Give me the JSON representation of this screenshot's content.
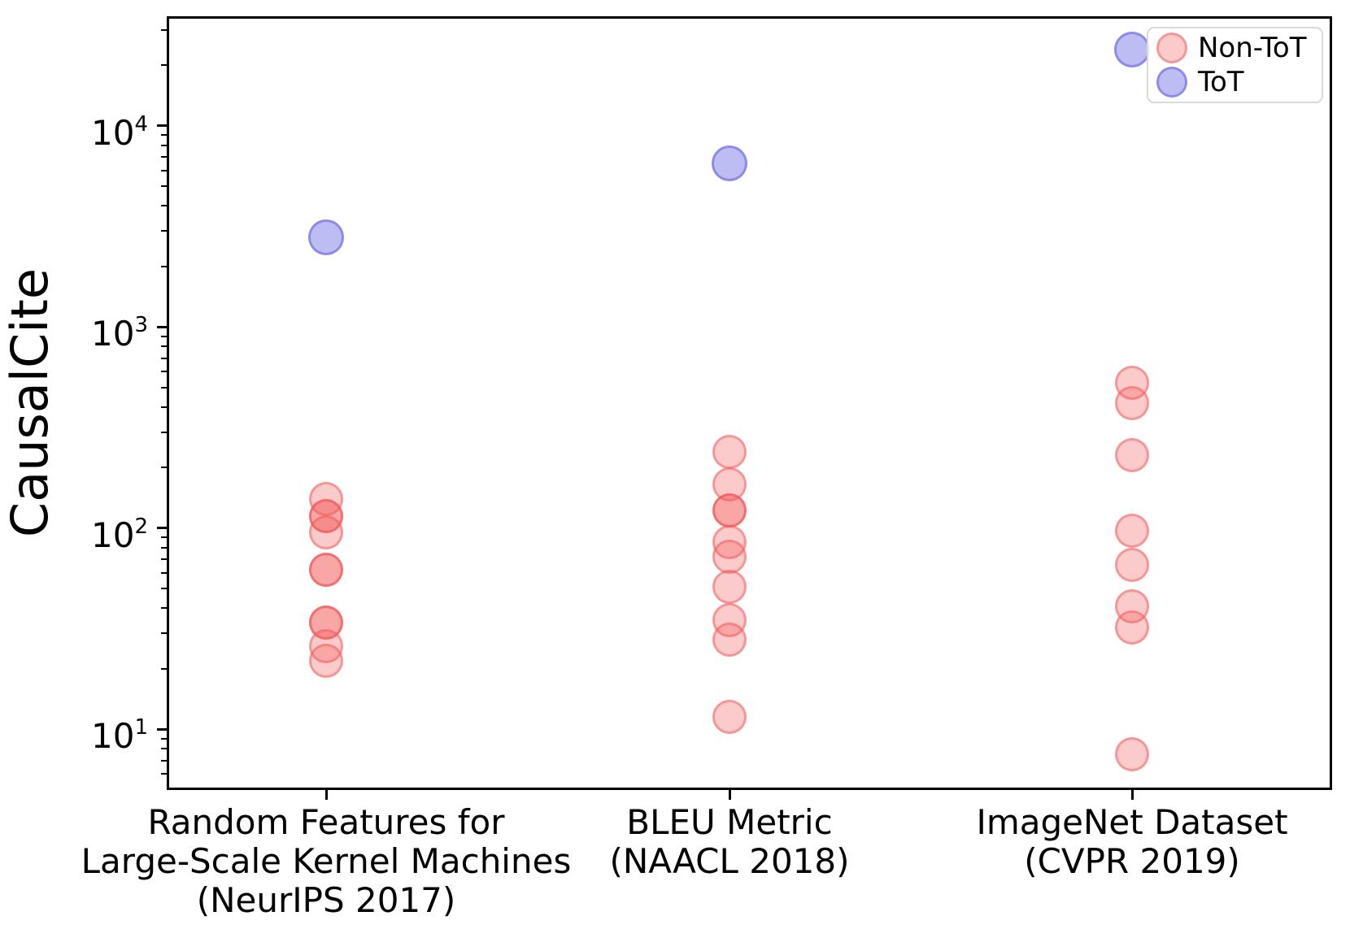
{
  "chart_data": {
    "type": "scatter",
    "title": "",
    "ylabel": "CausalCite",
    "xlabel": "",
    "yscale": "log",
    "ylim": [
      5,
      35000
    ],
    "grid": false,
    "legend": {
      "position": "upper right",
      "entries": [
        {
          "label": "Non-ToT",
          "color": "#f35a5a"
        },
        {
          "label": "ToT",
          "color": "#6462e2"
        }
      ]
    },
    "yticks": [
      {
        "base": "10",
        "exp": "4",
        "value": 10000
      },
      {
        "base": "10",
        "exp": "3",
        "value": 1000
      },
      {
        "base": "10",
        "exp": "2",
        "value": 100
      },
      {
        "base": "10",
        "exp": "1",
        "value": 10
      }
    ],
    "categories": [
      {
        "label": "Random Features for\nLarge-Scale Kernel Machines\n(NeurIPS 2017)",
        "series": {
          "non_tot": [
            140,
            115,
            115,
            95,
            62,
            62,
            34,
            34,
            26,
            22
          ],
          "tot": [
            2800
          ]
        }
      },
      {
        "label": "BLEU Metric\n(NAACL 2018)",
        "series": {
          "non_tot": [
            240,
            165,
            122,
            122,
            85,
            72,
            51,
            35,
            28,
            11.5
          ],
          "tot": [
            6500
          ]
        }
      },
      {
        "label": "ImageNet Dataset\n(CVPR 2019)",
        "series": {
          "non_tot": [
            530,
            420,
            230,
            97,
            66,
            41,
            32,
            7.5
          ],
          "tot": [
            24000
          ]
        }
      }
    ]
  }
}
